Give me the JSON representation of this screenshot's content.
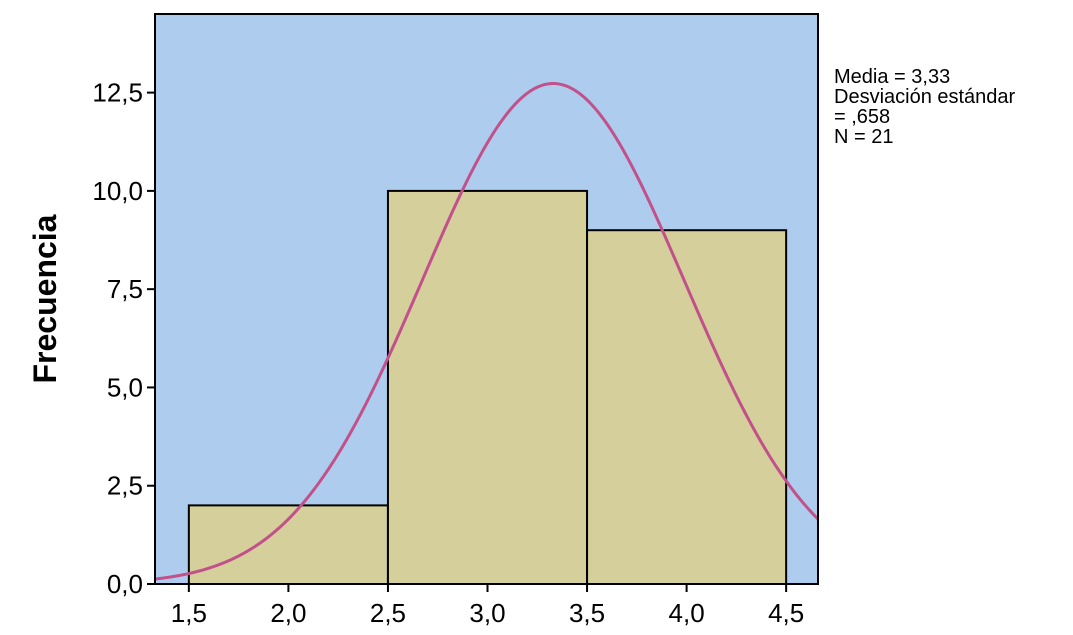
{
  "chart_data": {
    "type": "bar",
    "subtype": "histogram",
    "ylabel": "Frecuencia",
    "xlabel": "",
    "bins": [
      {
        "from": 1.5,
        "to": 2.5,
        "count": 2
      },
      {
        "from": 2.5,
        "to": 3.5,
        "count": 10
      },
      {
        "from": 3.5,
        "to": 4.5,
        "count": 9
      }
    ],
    "xlim": [
      1.33,
      4.66
    ],
    "ylim": [
      0,
      14.5
    ],
    "xticks": [
      1.5,
      2.0,
      2.5,
      3.0,
      3.5,
      4.0,
      4.5
    ],
    "xtick_labels": [
      "1,5",
      "2,0",
      "2,5",
      "3,0",
      "3,5",
      "4,0",
      "4,5"
    ],
    "yticks": [
      0,
      2.5,
      5,
      7.5,
      10,
      12.5
    ],
    "ytick_labels": [
      "0,0",
      "2,5",
      "5,0",
      "7,5",
      "10,0",
      "12,5"
    ],
    "normal_curve": {
      "mean": 3.33,
      "sd": 0.658,
      "n": 21,
      "bin_width": 1.0
    },
    "stats_lines": [
      "Media = 3,33",
      "Desviación estándar",
      "= ,658",
      "N = 21"
    ],
    "colors": {
      "plot_background": "#aecdee",
      "bar_fill": "#d4cf9b",
      "bar_stroke": "#000000",
      "curve": "#c2508a",
      "axis": "#000000"
    },
    "grid": false,
    "legend": "none"
  }
}
